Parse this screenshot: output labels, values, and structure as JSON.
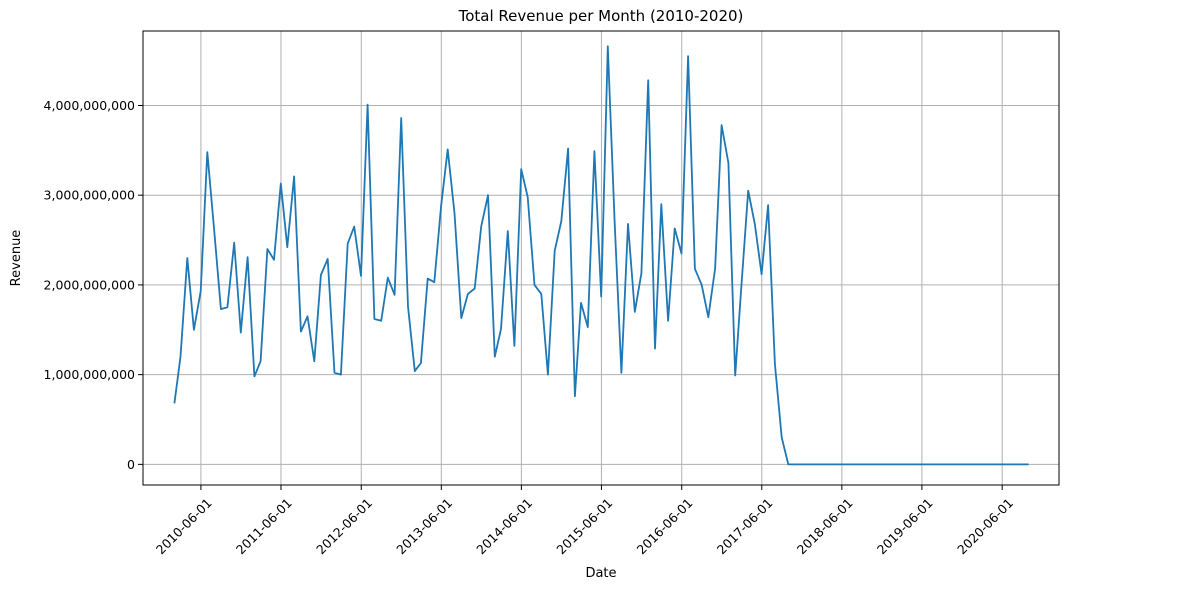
{
  "chart_data": {
    "type": "line",
    "title": "Total Revenue per Month (2010-2020)",
    "xlabel": "Date",
    "ylabel": "Revenue",
    "xlim": [
      "2009-09-10",
      "2021-02-15"
    ],
    "ylim": [
      -230000000,
      4830000000
    ],
    "grid": true,
    "x_ticks": [
      "2010-06-01",
      "2011-06-01",
      "2012-06-01",
      "2013-06-01",
      "2014-06-01",
      "2015-06-01",
      "2016-06-01",
      "2017-06-01",
      "2018-06-01",
      "2019-06-01",
      "2020-06-01"
    ],
    "y_ticks": [
      0,
      1000000000,
      2000000000,
      3000000000,
      4000000000
    ],
    "y_tick_labels": [
      "0",
      "1,000,000,000",
      "2,000,000,000",
      "3,000,000,000",
      "4,000,000,000"
    ],
    "series": [
      {
        "color": "#1f77b4",
        "x": [
          "2010-01-31",
          "2010-02-28",
          "2010-03-31",
          "2010-04-30",
          "2010-05-31",
          "2010-06-30",
          "2010-07-31",
          "2010-08-31",
          "2010-09-30",
          "2010-10-31",
          "2010-11-30",
          "2010-12-31",
          "2011-01-31",
          "2011-02-28",
          "2011-03-31",
          "2011-04-30",
          "2011-05-31",
          "2011-06-30",
          "2011-07-31",
          "2011-08-31",
          "2011-09-30",
          "2011-10-31",
          "2011-11-30",
          "2011-12-31",
          "2012-01-31",
          "2012-02-29",
          "2012-03-31",
          "2012-04-30",
          "2012-05-31",
          "2012-06-30",
          "2012-07-31",
          "2012-08-31",
          "2012-09-30",
          "2012-10-31",
          "2012-11-30",
          "2012-12-31",
          "2013-01-31",
          "2013-02-28",
          "2013-03-31",
          "2013-04-30",
          "2013-05-31",
          "2013-06-30",
          "2013-07-31",
          "2013-08-31",
          "2013-09-30",
          "2013-10-31",
          "2013-11-30",
          "2013-12-31",
          "2014-01-31",
          "2014-02-28",
          "2014-03-31",
          "2014-04-30",
          "2014-05-31",
          "2014-06-30",
          "2014-07-31",
          "2014-08-31",
          "2014-09-30",
          "2014-10-31",
          "2014-11-30",
          "2014-12-31",
          "2015-01-31",
          "2015-02-28",
          "2015-03-31",
          "2015-04-30",
          "2015-05-31",
          "2015-06-30",
          "2015-07-31",
          "2015-08-31",
          "2015-09-30",
          "2015-10-31",
          "2015-11-30",
          "2015-12-31",
          "2016-01-31",
          "2016-02-29",
          "2016-03-31",
          "2016-04-30",
          "2016-05-31",
          "2016-06-30",
          "2016-07-31",
          "2016-08-31",
          "2016-09-30",
          "2016-10-31",
          "2016-11-30",
          "2016-12-31",
          "2017-01-31",
          "2017-02-28",
          "2017-03-31",
          "2017-04-30",
          "2017-05-31",
          "2017-06-30",
          "2017-07-31",
          "2017-08-31",
          "2017-09-30",
          "2017-10-31",
          "2020-09-30"
        ],
        "y": [
          680000000,
          1200000000,
          2300000000,
          1500000000,
          1930000000,
          3480000000,
          2620000000,
          1730000000,
          1750000000,
          2470000000,
          1470000000,
          2310000000,
          980000000,
          1150000000,
          2400000000,
          2280000000,
          3130000000,
          2420000000,
          3210000000,
          1480000000,
          1650000000,
          1150000000,
          2110000000,
          2290000000,
          1020000000,
          1000000000,
          2460000000,
          2650000000,
          2100000000,
          4010000000,
          1620000000,
          1600000000,
          2080000000,
          1890000000,
          3860000000,
          1760000000,
          1040000000,
          1130000000,
          2070000000,
          2030000000,
          2880000000,
          3510000000,
          2800000000,
          1630000000,
          1900000000,
          1960000000,
          2650000000,
          3000000000,
          1200000000,
          1510000000,
          2600000000,
          1320000000,
          3290000000,
          2980000000,
          2000000000,
          1900000000,
          1000000000,
          2380000000,
          2710000000,
          3520000000,
          760000000,
          1800000000,
          1530000000,
          3490000000,
          1870000000,
          4660000000,
          2710000000,
          1020000000,
          2680000000,
          1700000000,
          2130000000,
          4280000000,
          1290000000,
          2900000000,
          1600000000,
          2630000000,
          2350000000,
          4550000000,
          2180000000,
          2000000000,
          1640000000,
          2180000000,
          3780000000,
          3360000000,
          990000000,
          1990000000,
          3050000000,
          2680000000,
          2120000000,
          2890000000,
          1120000000,
          300000000,
          0,
          0,
          0
        ]
      }
    ]
  }
}
